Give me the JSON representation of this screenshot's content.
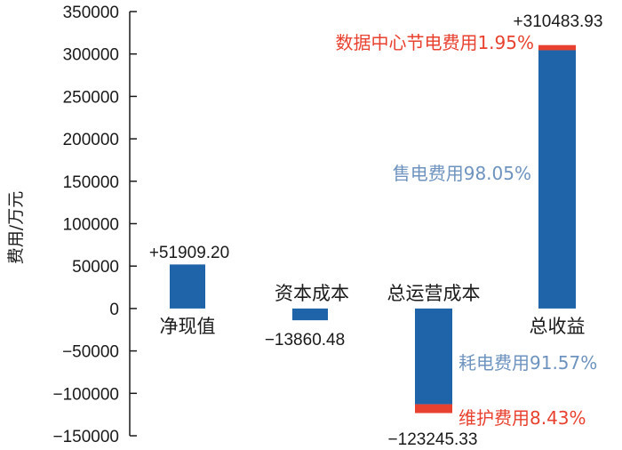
{
  "chart_data": {
    "type": "bar",
    "ylabel": "费用/万元",
    "ylim": [
      -150000,
      350000
    ],
    "yticks": [
      350000,
      300000,
      250000,
      200000,
      150000,
      100000,
      50000,
      0,
      -50000,
      -100000,
      -150000
    ],
    "ytick_labels": [
      "350000",
      "300000",
      "250000",
      "200000",
      "150000",
      "100000",
      "50000",
      "0",
      "−50000",
      "−100000",
      "−150000"
    ],
    "categories": [
      "净现值",
      "资本成本",
      "总运营成本",
      "总收益"
    ],
    "bars": [
      {
        "category": "净现值",
        "segments": [
          {
            "from": 0,
            "to": 51909.2,
            "color": "#1f64a8"
          }
        ],
        "value_label": "+51909.20"
      },
      {
        "category": "资本成本",
        "segments": [
          {
            "from": -13860.48,
            "to": 0,
            "color": "#1f64a8"
          }
        ],
        "value_label": "−13860.48"
      },
      {
        "category": "总运营成本",
        "segments": [
          {
            "from": -112856.5,
            "to": 0,
            "color": "#1f64a8"
          },
          {
            "from": -123245.33,
            "to": -112856.5,
            "color": "#e8412f"
          }
        ],
        "value_label": "−123245.33"
      },
      {
        "category": "总收益",
        "segments": [
          {
            "from": 0,
            "to": 304429.19,
            "color": "#1f64a8"
          },
          {
            "from": 304429.19,
            "to": 310483.93,
            "color": "#e8412f"
          }
        ],
        "value_label": "+310483.93"
      }
    ],
    "annotations": [
      {
        "text": "数据中心节电费用1.95%",
        "color": "#e8412f"
      },
      {
        "text": "售电费用98.05%",
        "color": "#6e93bf"
      },
      {
        "text": "耗电费用91.57%",
        "color": "#6e93bf"
      },
      {
        "text": "维护费用8.43%",
        "color": "#e8412f"
      }
    ]
  }
}
